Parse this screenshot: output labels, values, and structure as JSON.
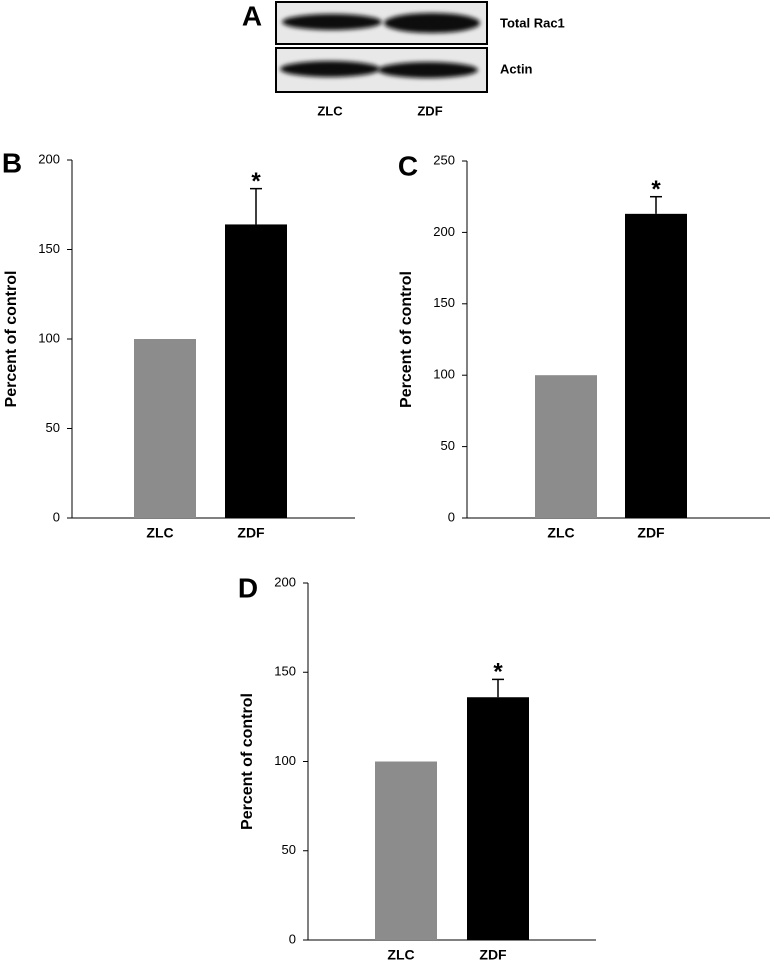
{
  "blot": {
    "label": "A",
    "rows": [
      "Total Rac1",
      "Actin"
    ],
    "lanes": [
      "ZLC",
      "ZDF"
    ]
  },
  "chart_data": [
    {
      "type": "bar",
      "label": "B",
      "y_label": "Percent of control",
      "categories": [
        "ZLC",
        "ZDF"
      ],
      "values": [
        100,
        164
      ],
      "errors": [
        null,
        20
      ],
      "significance": [
        null,
        "*"
      ],
      "colors": [
        "#8c8c8c",
        "#000000"
      ],
      "ylim": [
        0,
        200
      ],
      "yticks": [
        0,
        50,
        100,
        150,
        200
      ]
    },
    {
      "type": "bar",
      "label": "C",
      "y_label": "Percent of control",
      "categories": [
        "ZLC",
        "ZDF"
      ],
      "values": [
        100,
        213
      ],
      "errors": [
        null,
        12
      ],
      "significance": [
        null,
        "*"
      ],
      "colors": [
        "#8c8c8c",
        "#000000"
      ],
      "ylim": [
        0,
        250
      ],
      "yticks": [
        0,
        50,
        100,
        150,
        200,
        250
      ]
    },
    {
      "type": "bar",
      "label": "D",
      "y_label": "Percent of control",
      "categories": [
        "ZLC",
        "ZDF"
      ],
      "values": [
        100,
        136
      ],
      "errors": [
        null,
        10
      ],
      "significance": [
        null,
        "*"
      ],
      "colors": [
        "#8c8c8c",
        "#000000"
      ],
      "ylim": [
        0,
        200
      ],
      "yticks": [
        0,
        50,
        100,
        150,
        200
      ]
    }
  ]
}
